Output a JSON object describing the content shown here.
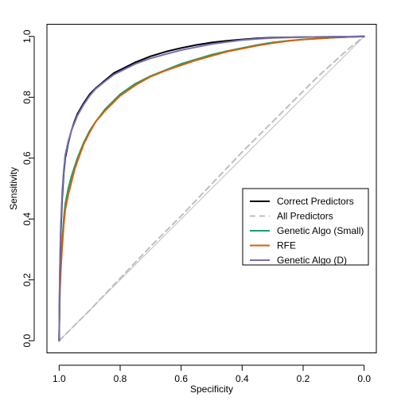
{
  "chart_data": {
    "type": "line",
    "title": "",
    "xlabel": "Specificity",
    "ylabel": "Sensitivity",
    "xlim": [
      1.04,
      -0.04
    ],
    "ylim": [
      -0.04,
      1.04
    ],
    "x_reversed": true,
    "xticks": [
      1.0,
      0.8,
      0.6,
      0.4,
      0.2,
      0.0
    ],
    "xtick_labels": [
      "1.0",
      "0.8",
      "0.6",
      "0.4",
      "0.2",
      "0.0"
    ],
    "yticks": [
      0.0,
      0.2,
      0.4,
      0.6,
      0.8,
      1.0
    ],
    "ytick_labels": [
      "0.0",
      "0.2",
      "0.4",
      "0.6",
      "0.8",
      "1.0"
    ],
    "grid": false,
    "legend_position": "right",
    "reference_line": {
      "from": [
        1.0,
        0.0
      ],
      "to": [
        0.0,
        1.0
      ],
      "color": "#bebebe"
    },
    "series": [
      {
        "name": "Correct Predictors",
        "color": "#000000",
        "dash": "solid",
        "points": [
          [
            1.0,
            0.0
          ],
          [
            0.998,
            0.2
          ],
          [
            0.995,
            0.35
          ],
          [
            0.99,
            0.47
          ],
          [
            0.985,
            0.55
          ],
          [
            0.98,
            0.6
          ],
          [
            0.97,
            0.65
          ],
          [
            0.96,
            0.69
          ],
          [
            0.95,
            0.72
          ],
          [
            0.94,
            0.745
          ],
          [
            0.92,
            0.78
          ],
          [
            0.9,
            0.81
          ],
          [
            0.88,
            0.83
          ],
          [
            0.85,
            0.855
          ],
          [
            0.82,
            0.88
          ],
          [
            0.8,
            0.89
          ],
          [
            0.75,
            0.915
          ],
          [
            0.7,
            0.935
          ],
          [
            0.65,
            0.95
          ],
          [
            0.6,
            0.962
          ],
          [
            0.55,
            0.972
          ],
          [
            0.5,
            0.98
          ],
          [
            0.45,
            0.986
          ],
          [
            0.4,
            0.99
          ],
          [
            0.35,
            0.994
          ],
          [
            0.3,
            0.996
          ],
          [
            0.2,
            0.998
          ],
          [
            0.1,
            0.999
          ],
          [
            0.0,
            1.0
          ]
        ]
      },
      {
        "name": "All Predictors",
        "color": "#bebebe",
        "dash": "dashed",
        "points": [
          [
            1.0,
            0.0
          ],
          [
            0.9,
            0.1
          ],
          [
            0.8,
            0.205
          ],
          [
            0.7,
            0.31
          ],
          [
            0.6,
            0.41
          ],
          [
            0.5,
            0.515
          ],
          [
            0.4,
            0.62
          ],
          [
            0.3,
            0.72
          ],
          [
            0.2,
            0.82
          ],
          [
            0.15,
            0.87
          ],
          [
            0.1,
            0.915
          ],
          [
            0.05,
            0.96
          ],
          [
            0.0,
            1.0
          ]
        ]
      },
      {
        "name": "Genetic Algo (Small)",
        "color": "#1b9e77",
        "dash": "solid",
        "points": [
          [
            1.0,
            0.0
          ],
          [
            0.998,
            0.15
          ],
          [
            0.995,
            0.25
          ],
          [
            0.99,
            0.33
          ],
          [
            0.985,
            0.4
          ],
          [
            0.98,
            0.45
          ],
          [
            0.97,
            0.5
          ],
          [
            0.96,
            0.54
          ],
          [
            0.95,
            0.57
          ],
          [
            0.94,
            0.6
          ],
          [
            0.92,
            0.65
          ],
          [
            0.9,
            0.69
          ],
          [
            0.88,
            0.72
          ],
          [
            0.85,
            0.76
          ],
          [
            0.82,
            0.79
          ],
          [
            0.8,
            0.81
          ],
          [
            0.75,
            0.845
          ],
          [
            0.7,
            0.87
          ],
          [
            0.65,
            0.89
          ],
          [
            0.6,
            0.91
          ],
          [
            0.55,
            0.925
          ],
          [
            0.5,
            0.94
          ],
          [
            0.45,
            0.952
          ],
          [
            0.4,
            0.962
          ],
          [
            0.35,
            0.972
          ],
          [
            0.3,
            0.98
          ],
          [
            0.25,
            0.986
          ],
          [
            0.2,
            0.99
          ],
          [
            0.1,
            0.996
          ],
          [
            0.0,
            1.0
          ]
        ]
      },
      {
        "name": "RFE",
        "color": "#d95f02",
        "dash": "solid",
        "points": [
          [
            1.0,
            0.0
          ],
          [
            0.998,
            0.14
          ],
          [
            0.995,
            0.23
          ],
          [
            0.99,
            0.31
          ],
          [
            0.985,
            0.38
          ],
          [
            0.98,
            0.43
          ],
          [
            0.97,
            0.48
          ],
          [
            0.96,
            0.52
          ],
          [
            0.95,
            0.56
          ],
          [
            0.94,
            0.59
          ],
          [
            0.92,
            0.645
          ],
          [
            0.9,
            0.685
          ],
          [
            0.88,
            0.72
          ],
          [
            0.85,
            0.755
          ],
          [
            0.82,
            0.785
          ],
          [
            0.8,
            0.805
          ],
          [
            0.75,
            0.84
          ],
          [
            0.7,
            0.868
          ],
          [
            0.65,
            0.888
          ],
          [
            0.6,
            0.905
          ],
          [
            0.55,
            0.922
          ],
          [
            0.5,
            0.936
          ],
          [
            0.45,
            0.95
          ],
          [
            0.4,
            0.96
          ],
          [
            0.35,
            0.97
          ],
          [
            0.3,
            0.978
          ],
          [
            0.25,
            0.985
          ],
          [
            0.2,
            0.99
          ],
          [
            0.1,
            0.996
          ],
          [
            0.0,
            1.0
          ]
        ]
      },
      {
        "name": "Genetic Algo (D)",
        "color": "#7570b3",
        "dash": "solid",
        "points": [
          [
            1.0,
            0.0
          ],
          [
            0.998,
            0.22
          ],
          [
            0.995,
            0.37
          ],
          [
            0.99,
            0.49
          ],
          [
            0.985,
            0.56
          ],
          [
            0.98,
            0.61
          ],
          [
            0.97,
            0.655
          ],
          [
            0.96,
            0.69
          ],
          [
            0.95,
            0.715
          ],
          [
            0.94,
            0.74
          ],
          [
            0.92,
            0.775
          ],
          [
            0.9,
            0.805
          ],
          [
            0.88,
            0.828
          ],
          [
            0.85,
            0.852
          ],
          [
            0.82,
            0.875
          ],
          [
            0.8,
            0.885
          ],
          [
            0.75,
            0.91
          ],
          [
            0.7,
            0.928
          ],
          [
            0.65,
            0.942
          ],
          [
            0.6,
            0.955
          ],
          [
            0.55,
            0.965
          ],
          [
            0.5,
            0.975
          ],
          [
            0.45,
            0.982
          ],
          [
            0.4,
            0.988
          ],
          [
            0.35,
            0.992
          ],
          [
            0.3,
            0.995
          ],
          [
            0.2,
            0.998
          ],
          [
            0.1,
            0.999
          ],
          [
            0.0,
            1.0
          ]
        ]
      }
    ]
  }
}
